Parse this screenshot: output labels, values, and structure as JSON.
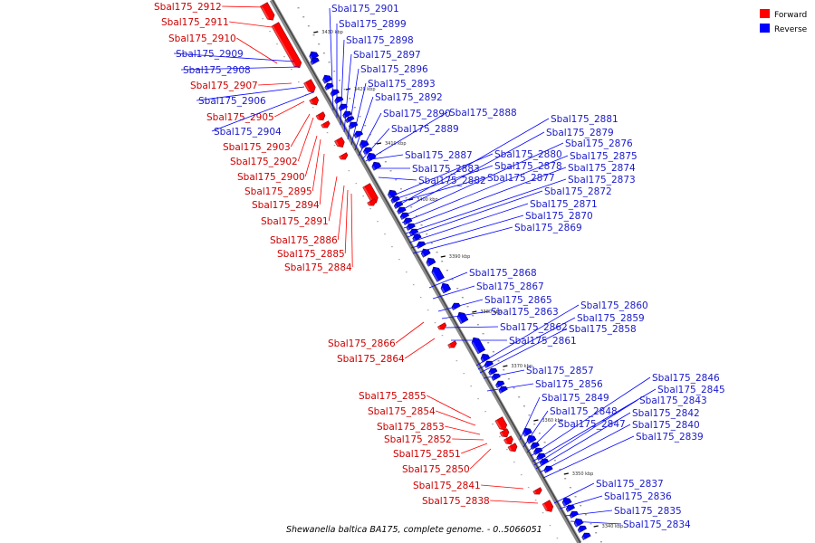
{
  "legend": {
    "forward_label": "Forward",
    "reverse_label": "Reverse",
    "forward_color": "#ff0000",
    "reverse_color": "#0000ff"
  },
  "caption": "Shewanella baltica BA175, complete genome. - 0..5066051",
  "ticks": [
    "3430 kbp",
    "3420 kbp",
    "3410 kbp",
    "3400 kbp",
    "3390 kbp",
    "3380 kbp",
    "3370 kbp",
    "3360 kbp",
    "3350 kbp",
    "3340 kbp"
  ],
  "forward_genes": [
    "Sbal175_2912",
    "Sbal175_2911",
    "Sbal175_2910",
    "Sbal175_2907",
    "Sbal175_2905",
    "Sbal175_2903",
    "Sbal175_2902",
    "Sbal175_2900",
    "Sbal175_2895",
    "Sbal175_2894",
    "Sbal175_2891",
    "Sbal175_2886",
    "Sbal175_2885",
    "Sbal175_2884",
    "Sbal175_2866",
    "Sbal175_2864",
    "Sbal175_2855",
    "Sbal175_2854",
    "Sbal175_2853",
    "Sbal175_2852",
    "Sbal175_2851",
    "Sbal175_2850",
    "Sbal175_2841",
    "Sbal175_2838"
  ],
  "reverse_genes": [
    "Sbal175_2909",
    "Sbal175_2908",
    "Sbal175_2906",
    "Sbal175_2904",
    "Sbal175_2901",
    "Sbal175_2899",
    "Sbal175_2898",
    "Sbal175_2897",
    "Sbal175_2896",
    "Sbal175_2893",
    "Sbal175_2892",
    "Sbal175_2890",
    "Sbal175_2888",
    "Sbal175_2889",
    "Sbal175_2881",
    "Sbal175_2879",
    "Sbal175_2876",
    "Sbal175_2875",
    "Sbal175_2874",
    "Sbal175_2873",
    "Sbal175_2880",
    "Sbal175_2878",
    "Sbal175_2877",
    "Sbal175_2872",
    "Sbal175_2871",
    "Sbal175_2870",
    "Sbal175_2869",
    "Sbal175_2887",
    "Sbal175_2883",
    "Sbal175_2882",
    "Sbal175_2868",
    "Sbal175_2867",
    "Sbal175_2865",
    "Sbal175_2863",
    "Sbal175_2862",
    "Sbal175_2861",
    "Sbal175_2860",
    "Sbal175_2859",
    "Sbal175_2858",
    "Sbal175_2857",
    "Sbal175_2856",
    "Sbal175_2849",
    "Sbal175_2848",
    "Sbal175_2847",
    "Sbal175_2846",
    "Sbal175_2845",
    "Sbal175_2843",
    "Sbal175_2842",
    "Sbal175_2840",
    "Sbal175_2839",
    "Sbal175_2837",
    "Sbal175_2836",
    "Sbal175_2835",
    "Sbal175_2834"
  ]
}
